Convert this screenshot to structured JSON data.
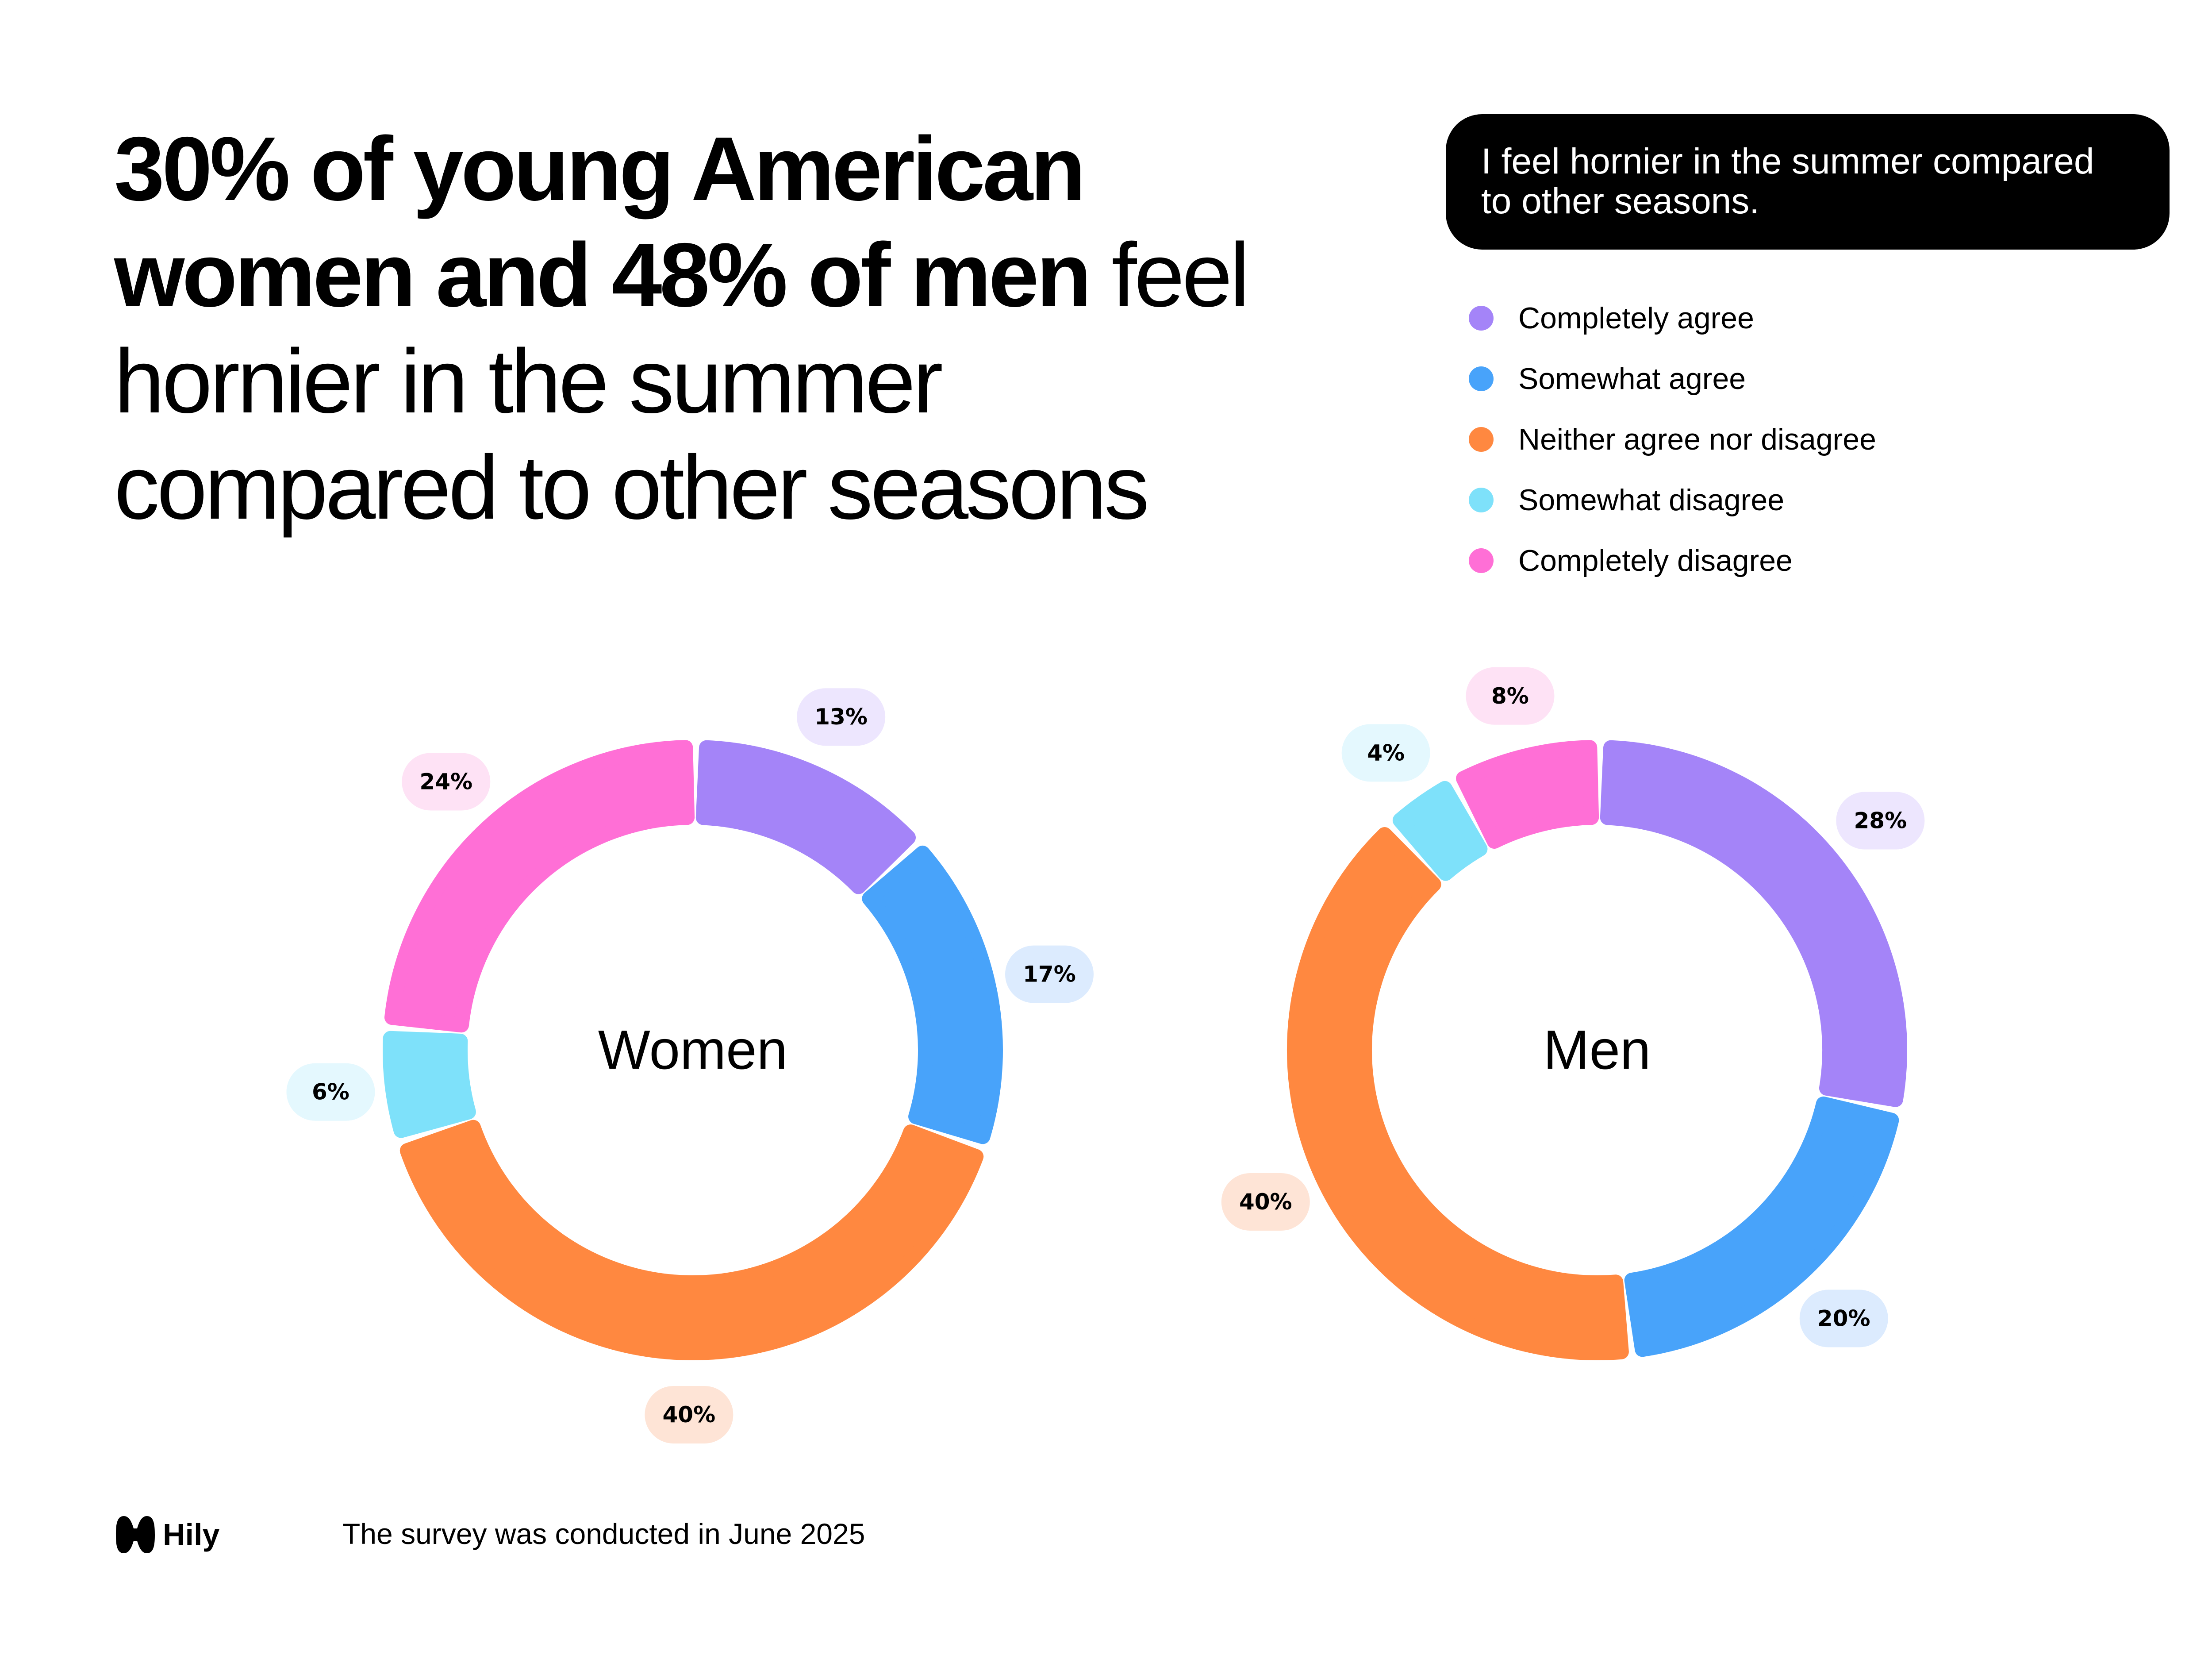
{
  "headline": {
    "bold": "30% of young American women and 48% of men",
    "rest": " feel hornier in the summer compared to other seasons"
  },
  "question": "I feel hornier in the summer compared to other seasons.",
  "legend": [
    {
      "label": "Completely agree",
      "color": "#A484F8"
    },
    {
      "label": "Somewhat agree",
      "color": "#48A3FA"
    },
    {
      "label": "Neither agree nor disagree",
      "color": "#FF8840"
    },
    {
      "label": "Somewhat disagree",
      "color": "#7EE1FA"
    },
    {
      "label": "Completely disagree",
      "color": "#FF6FD6"
    }
  ],
  "chart_data": [
    {
      "type": "pie",
      "title": "Women",
      "categories": [
        "Completely agree",
        "Somewhat agree",
        "Neither agree nor disagree",
        "Somewhat disagree",
        "Completely disagree"
      ],
      "values": [
        13,
        17,
        40,
        6,
        24
      ],
      "labels": [
        "13%",
        "17%",
        "40%",
        "6%",
        "24%"
      ]
    },
    {
      "type": "pie",
      "title": "Men",
      "categories": [
        "Completely agree",
        "Somewhat agree",
        "Neither agree nor disagree",
        "Somewhat disagree",
        "Completely disagree"
      ],
      "values": [
        28,
        20,
        40,
        4,
        8
      ],
      "labels": [
        "28%",
        "20%",
        "40%",
        "4%",
        "8%"
      ]
    }
  ],
  "label_backgrounds": [
    "#EDE6FE",
    "#DCEBFE",
    "#FEE4D6",
    "#E4F8FE",
    "#FEE2F5"
  ],
  "footer": {
    "brand": "Hily",
    "note": "The survey was conducted in June 2025"
  }
}
